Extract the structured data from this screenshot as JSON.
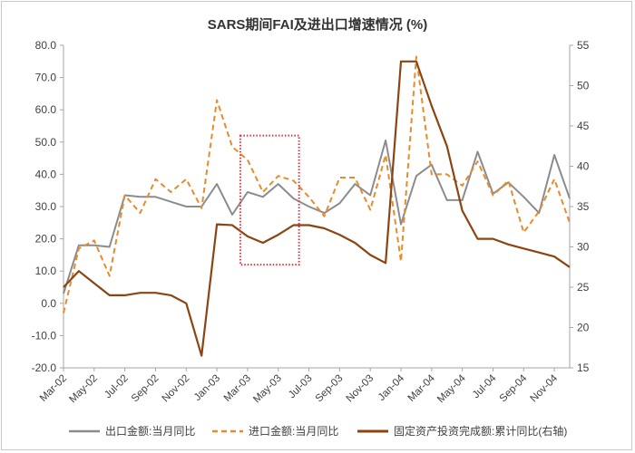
{
  "chart_data": {
    "type": "line",
    "title": "SARS期间FAI及进出口增速情况 (%)",
    "x": [
      "Mar-02",
      "Apr-02",
      "May-02",
      "Jun-02",
      "Jul-02",
      "Aug-02",
      "Sep-02",
      "Oct-02",
      "Nov-02",
      "Dec-02",
      "Jan-03",
      "Feb-03",
      "Mar-03",
      "Apr-03",
      "May-03",
      "Jun-03",
      "Jul-03",
      "Aug-03",
      "Sep-03",
      "Oct-03",
      "Nov-03",
      "Dec-03",
      "Jan-04",
      "Feb-04",
      "Mar-04",
      "Apr-04",
      "May-04",
      "Jun-04",
      "Jul-04",
      "Aug-04",
      "Sep-04",
      "Oct-04",
      "Nov-04",
      "Dec-04"
    ],
    "xtick_labels": [
      "Mar-02",
      "May-02",
      "Jul-02",
      "Sep-02",
      "Nov-02",
      "Jan-03",
      "Mar-03",
      "May-03",
      "Jul-03",
      "Sep-03",
      "Nov-03",
      "Jan-04",
      "Mar-04",
      "May-04",
      "Jul-04",
      "Sep-04",
      "Nov-04"
    ],
    "left_axis": {
      "ylim": [
        -20,
        80
      ],
      "ticks": [
        "80.0",
        "70.0",
        "60.0",
        "50.0",
        "40.0",
        "30.0",
        "20.0",
        "10.0",
        "0.0",
        "-10.0",
        "-20.0"
      ]
    },
    "right_axis": {
      "ylim": [
        15,
        55
      ],
      "ticks": [
        "55",
        "50",
        "45",
        "40",
        "35",
        "30",
        "25",
        "20",
        "15"
      ]
    },
    "series": [
      {
        "name": "出口金额:当月同比",
        "axis": "left",
        "color": "#8c8c8c",
        "style": "solid",
        "values": [
          3.0,
          18.0,
          18.0,
          17.5,
          33.5,
          33.0,
          33.0,
          31.5,
          30.0,
          30.0,
          37.0,
          27.5,
          34.5,
          33.0,
          37.0,
          32.5,
          30.0,
          28.0,
          31.0,
          37.0,
          33.5,
          50.5,
          24.5,
          39.5,
          43.0,
          32.0,
          32.0,
          47.0,
          34.0,
          37.5,
          33.0,
          28.0,
          46.0,
          32.5
        ]
      },
      {
        "name": "进口金额:当月同比",
        "axis": "left",
        "color": "#e78b2c",
        "style": "dashed",
        "values": [
          -3.0,
          17.0,
          19.5,
          8.5,
          33.5,
          28.0,
          38.5,
          34.5,
          38.5,
          29.5,
          63.0,
          48.5,
          44.5,
          34.5,
          39.5,
          38.0,
          33.0,
          27.0,
          39.0,
          39.0,
          29.0,
          46.0,
          13.0,
          76.5,
          40.0,
          40.0,
          36.5,
          44.0,
          33.5,
          38.0,
          22.0,
          28.5,
          38.5,
          25.0
        ]
      },
      {
        "name": "固定资产投资完成额:累计同比(右轴)",
        "axis": "right",
        "color": "#8b4513",
        "style": "solid",
        "values": [
          25.0,
          27.0,
          25.5,
          24.0,
          24.0,
          24.3,
          24.3,
          24.0,
          23.0,
          16.5,
          32.8,
          32.7,
          31.3,
          30.5,
          31.5,
          32.7,
          32.7,
          32.3,
          31.5,
          30.5,
          29.0,
          28.0,
          53.0,
          53.0,
          47.5,
          42.5,
          34.5,
          31.0,
          31.0,
          30.3,
          29.8,
          29.3,
          28.8,
          27.5
        ]
      }
    ],
    "annotation": {
      "type": "highlight-box",
      "x_from": "Mar-03",
      "x_to": "Jun-03",
      "y_from": 12,
      "y_to": 52,
      "axis": "left",
      "color": "#e0303a",
      "style": "dotted"
    },
    "grid": false,
    "legend_position": "bottom"
  }
}
